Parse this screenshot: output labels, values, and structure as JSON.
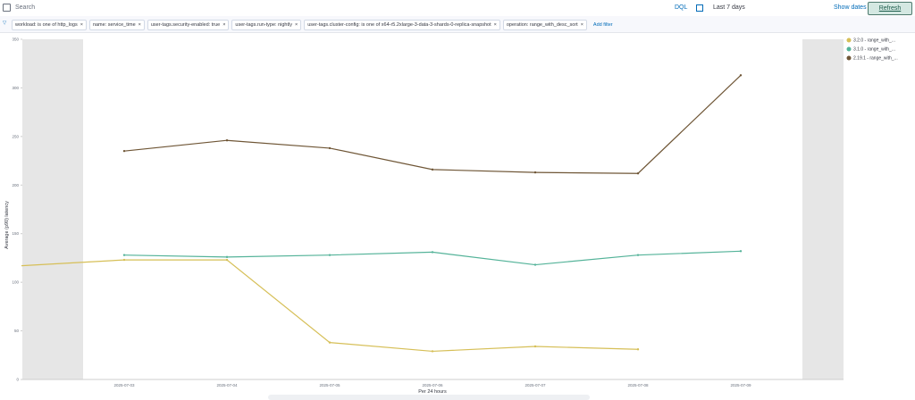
{
  "header": {
    "search_placeholder": "Search",
    "query_language": "DQL",
    "time_range": "Last 7 days",
    "show_dates": "Show dates",
    "refresh": "Refresh"
  },
  "filters": [
    "workload: is one of http_logs",
    "name: service_time",
    "user-tags.security-enabled: true",
    "user-tags.run-type: nightly",
    "user-tags.cluster-config: is one of x64-r5.2xlarge-3-data-3-shards-0-replica-snapshot",
    "operation: range_with_desc_sort"
  ],
  "add_filter": "Add filter",
  "chart_data": {
    "type": "line",
    "x_label": "Per 24 hours",
    "y_label": "Average (p90) latency",
    "categories": [
      null,
      "2025-07-03",
      "2025-07-04",
      "2025-07-05",
      "2025-07-06",
      "2025-07-07",
      "2025-07-08",
      "2025-07-09"
    ],
    "ylim": [
      0,
      350
    ],
    "yticks": [
      0,
      50,
      100,
      150,
      200,
      250,
      300,
      350
    ],
    "series": [
      {
        "name": "3.2.0 - range_with_...",
        "color": "#d6bf57",
        "values": [
          117,
          123,
          123,
          38,
          29,
          34,
          31,
          null
        ]
      },
      {
        "name": "3.1.0 - range_with_...",
        "color": "#54b399",
        "values": [
          null,
          128,
          126,
          128,
          131,
          118,
          128,
          132
        ]
      },
      {
        "name": "2.19.1 - range_with_...",
        "color": "#6f5636",
        "values": [
          null,
          235,
          246,
          238,
          216,
          213,
          212,
          313
        ]
      }
    ]
  }
}
